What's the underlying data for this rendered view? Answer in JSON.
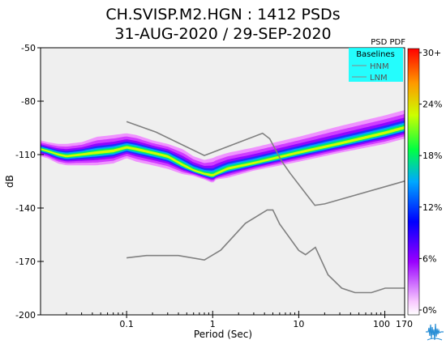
{
  "chart_data": {
    "type": "heatmap",
    "title_line1": "CH.SVISP.M2.HGN : 1412 PSDs",
    "title_line2": "31-AUG-2020 / 29-SEP-2020",
    "xlabel": "Period (Sec)",
    "ylabel": "dB",
    "x_scale": "log",
    "xlim": [
      0.01,
      170
    ],
    "ylim": [
      -200,
      -50
    ],
    "x_ticks": [
      {
        "value": 0.1,
        "label": "0.1"
      },
      {
        "value": 1,
        "label": "1"
      },
      {
        "value": 10,
        "label": "10"
      },
      {
        "value": 100,
        "label": "100"
      },
      {
        "value": 170,
        "label": "170"
      }
    ],
    "y_ticks": [
      -50,
      -80,
      -110,
      -140,
      -170,
      -200
    ],
    "colorbar": {
      "title": "PSD PDF",
      "tick_labels": [
        "30+",
        "24%",
        "18%",
        "12%",
        "6%",
        "0%"
      ]
    },
    "legend": {
      "title": "Baselines",
      "entries": [
        "HNM",
        "LNM"
      ],
      "placement": "top-right"
    },
    "series": [
      {
        "name": "HNM",
        "x": [
          0.1,
          0.22,
          0.8,
          3.8,
          4.6,
          6.3,
          7.9,
          15.4,
          20,
          354
        ],
        "y": [
          -91.5,
          -97.4,
          -110.5,
          -98,
          -101.1,
          -113.5,
          -120.3,
          -138.5,
          -137.7,
          -120.5
        ]
      },
      {
        "name": "LNM",
        "x": [
          0.1,
          0.17,
          0.4,
          0.8,
          1.24,
          2.4,
          4.3,
          5,
          6,
          10,
          12,
          15.6,
          21.9,
          31.6,
          45,
          70,
          101,
          154,
          328
        ],
        "y": [
          -168,
          -166.7,
          -166.7,
          -169.2,
          -163.7,
          -148.6,
          -141.1,
          -141.1,
          -149,
          -163.8,
          -166.2,
          -162.1,
          -177.5,
          -185,
          -187.5,
          -187.5,
          -185,
          -185,
          -185
        ]
      }
    ],
    "psd_band": {
      "x": [
        0.01,
        0.012,
        0.016,
        0.02,
        0.03,
        0.045,
        0.07,
        0.1,
        0.13,
        0.2,
        0.3,
        0.45,
        0.6,
        0.8,
        1.0,
        1.1,
        1.5,
        3,
        10,
        30,
        100,
        170
      ],
      "mode": [
        -107,
        -108,
        -110,
        -111,
        -110,
        -109,
        -108,
        -106,
        -107,
        -109,
        -111,
        -116,
        -119,
        -121,
        -122,
        -121,
        -118,
        -115,
        -109,
        -104,
        -98,
        -95
      ],
      "high": [
        -102,
        -103,
        -104,
        -104,
        -103,
        -100,
        -99,
        -98,
        -99,
        -102,
        -104,
        -107,
        -111,
        -113,
        -112,
        -111,
        -109,
        -106,
        -100,
        -94,
        -88,
        -85
      ],
      "low": [
        -111,
        -112,
        -115,
        -116,
        -116,
        -116,
        -115,
        -112,
        -114,
        -116,
        -118,
        -121,
        -122,
        -124,
        -126,
        -124,
        -123,
        -119,
        -114,
        -109,
        -104,
        -101
      ]
    },
    "grid": false
  }
}
